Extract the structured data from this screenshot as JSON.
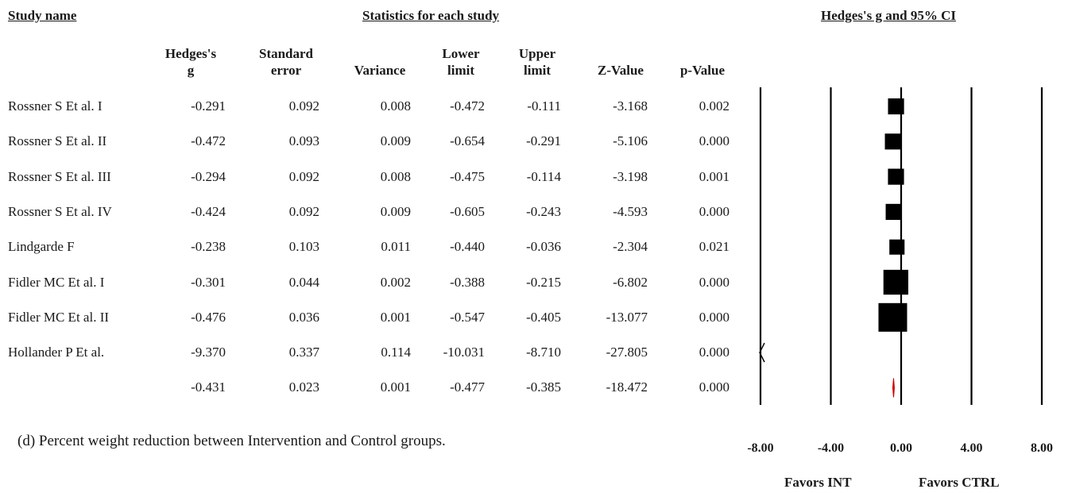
{
  "headers": {
    "study_name": "Study name",
    "stats_group": "Statistics for each study",
    "plot_title": "Hedges's g and 95% CI",
    "columns": [
      {
        "line1": "Hedges's",
        "line2": "g"
      },
      {
        "line1": "Standard",
        "line2": "error"
      },
      {
        "line1": "",
        "line2": "Variance"
      },
      {
        "line1": "Lower",
        "line2": "limit"
      },
      {
        "line1": "Upper",
        "line2": "limit"
      },
      {
        "line1": "",
        "line2": "Z-Value"
      },
      {
        "line1": "",
        "line2": "p-Value"
      }
    ]
  },
  "rows": [
    {
      "name": "Rossner S Et al. I",
      "cells": [
        "-0.291",
        "0.092",
        "0.008",
        "-0.472",
        "-0.111",
        "-3.168",
        "0.002"
      ]
    },
    {
      "name": "Rossner S Et al. II",
      "cells": [
        "-0.472",
        "0.093",
        "0.009",
        "-0.654",
        "-0.291",
        "-5.106",
        "0.000"
      ]
    },
    {
      "name": "Rossner S Et al. III",
      "cells": [
        "-0.294",
        "0.092",
        "0.008",
        "-0.475",
        "-0.114",
        "-3.198",
        "0.001"
      ]
    },
    {
      "name": "Rossner S Et al. IV",
      "cells": [
        "-0.424",
        "0.092",
        "0.009",
        "-0.605",
        "-0.243",
        "-4.593",
        "0.000"
      ]
    },
    {
      "name": "Lindgarde F",
      "cells": [
        "-0.238",
        "0.103",
        "0.011",
        "-0.440",
        "-0.036",
        "-2.304",
        "0.021"
      ]
    },
    {
      "name": "Fidler MC Et al. I",
      "cells": [
        "-0.301",
        "0.044",
        "0.002",
        "-0.388",
        "-0.215",
        "-6.802",
        "0.000"
      ]
    },
    {
      "name": "Fidler MC Et al. II",
      "cells": [
        "-0.476",
        "0.036",
        "0.001",
        "-0.547",
        "-0.405",
        "-13.077",
        "0.000"
      ]
    },
    {
      "name": "Hollander P Et al.",
      "cells": [
        "-9.370",
        "0.337",
        "0.114",
        "-10.031",
        "-8.710",
        "-27.805",
        "0.000"
      ]
    },
    {
      "name": "",
      "cells": [
        "-0.431",
        "0.023",
        "0.001",
        "-0.477",
        "-0.385",
        "-18.472",
        "0.000"
      ]
    }
  ],
  "caption": "(d) Percent weight reduction between Intervention and Control groups.",
  "favors_left": "Favors INT",
  "favors_right": "Favors CTRL",
  "colors": {
    "marker": "#000000",
    "summary": "#cc0000",
    "line": "#000000"
  },
  "chart_data": {
    "type": "forest",
    "title": "Hedges's g and 95% CI",
    "xlim": [
      -8,
      8
    ],
    "xticks": [
      -8,
      -4,
      0,
      4,
      8
    ],
    "xtick_labels": [
      "-8.00",
      "-4.00",
      "0.00",
      "4.00",
      "8.00"
    ],
    "studies": [
      {
        "name": "Rossner S Et al. I",
        "g": -0.291,
        "lower": -0.472,
        "upper": -0.111,
        "se": 0.092
      },
      {
        "name": "Rossner S Et al. II",
        "g": -0.472,
        "lower": -0.654,
        "upper": -0.291,
        "se": 0.093
      },
      {
        "name": "Rossner S Et al. III",
        "g": -0.294,
        "lower": -0.475,
        "upper": -0.114,
        "se": 0.092
      },
      {
        "name": "Rossner S Et al. IV",
        "g": -0.424,
        "lower": -0.605,
        "upper": -0.243,
        "se": 0.092
      },
      {
        "name": "Lindgarde F",
        "g": -0.238,
        "lower": -0.44,
        "upper": -0.036,
        "se": 0.103
      },
      {
        "name": "Fidler MC Et al. I",
        "g": -0.301,
        "lower": -0.388,
        "upper": -0.215,
        "se": 0.044
      },
      {
        "name": "Fidler MC Et al. II",
        "g": -0.476,
        "lower": -0.547,
        "upper": -0.405,
        "se": 0.036
      },
      {
        "name": "Hollander P Et al.",
        "g": -9.37,
        "lower": -10.031,
        "upper": -8.71,
        "se": 0.337
      }
    ],
    "summary": {
      "g": -0.431,
      "lower": -0.477,
      "upper": -0.385
    },
    "xlabel_left": "Favors INT",
    "xlabel_right": "Favors CTRL"
  }
}
